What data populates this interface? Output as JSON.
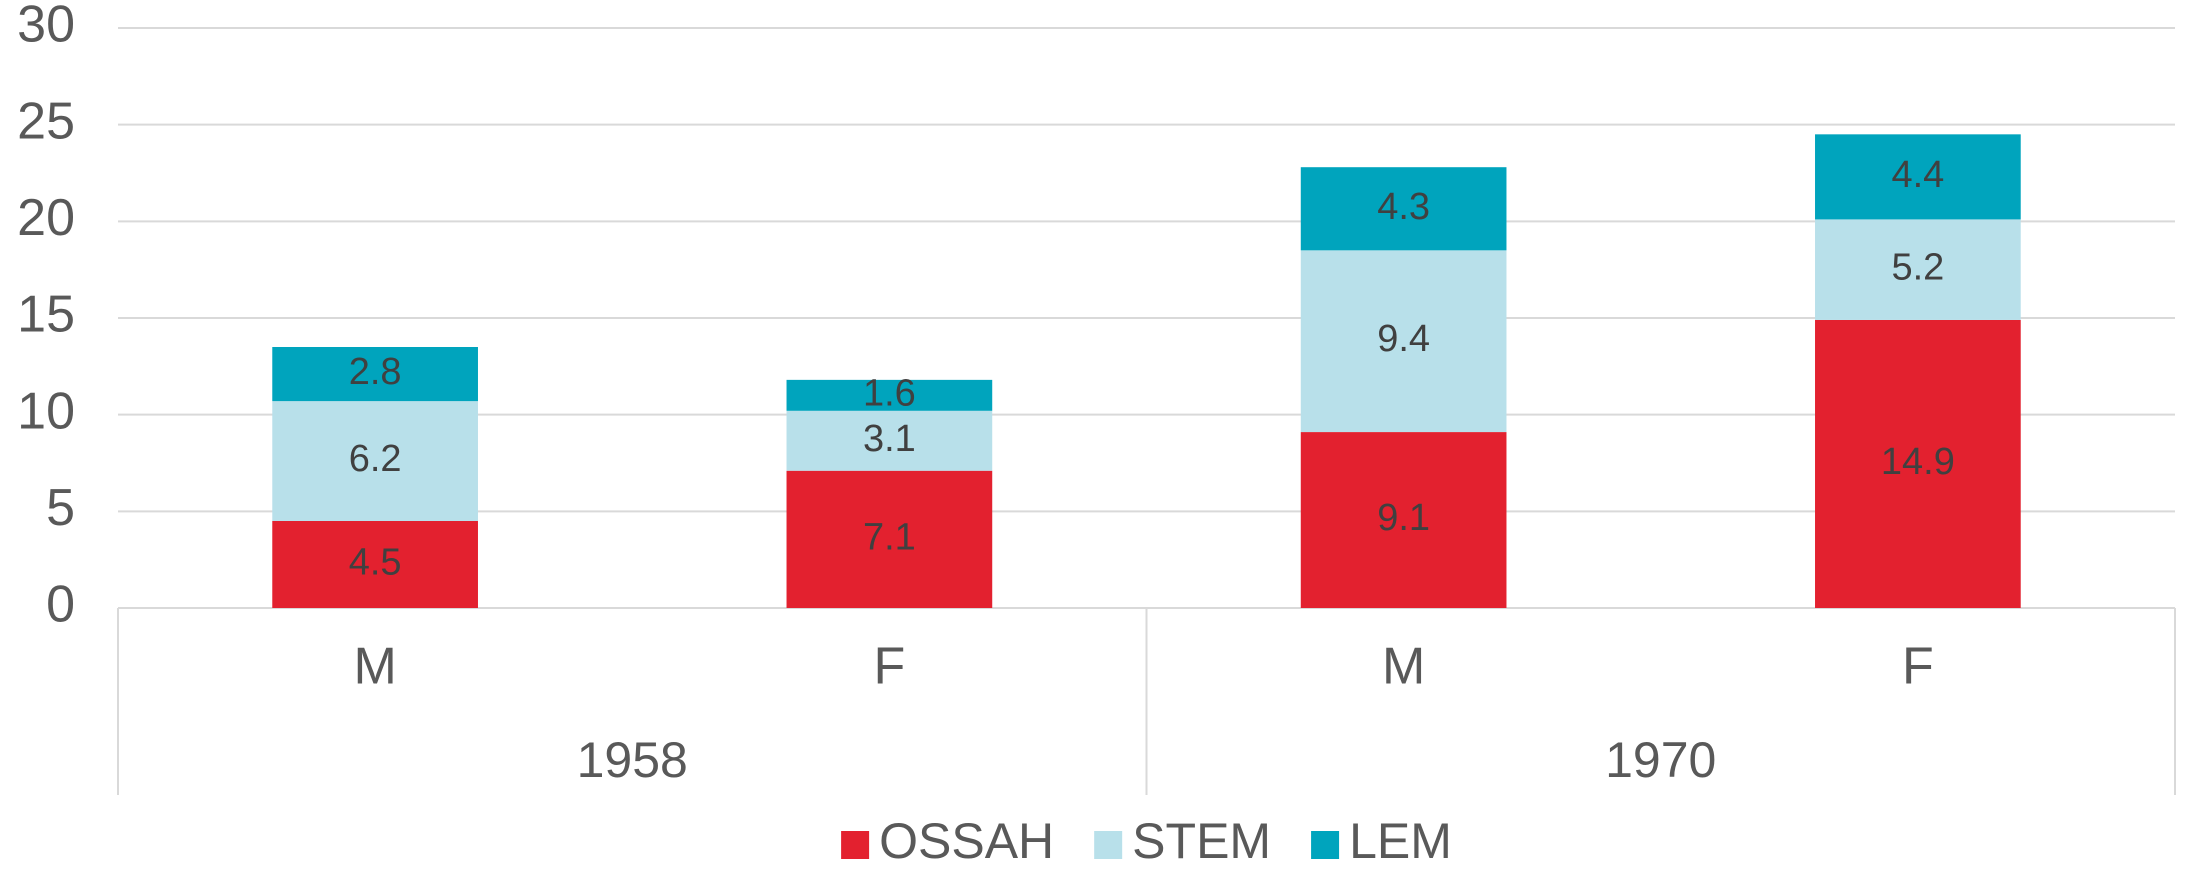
{
  "chart_data": {
    "type": "stacked_bar",
    "categories": [
      "M",
      "F",
      "M",
      "F"
    ],
    "groups": [
      "1958",
      "1970"
    ],
    "series": [
      {
        "name": "OSSAH",
        "color": "#e3212f",
        "values": [
          4.5,
          7.1,
          9.1,
          14.9
        ]
      },
      {
        "name": "STEM",
        "color": "#b8e0ea",
        "values": [
          6.2,
          3.1,
          9.4,
          5.2
        ]
      },
      {
        "name": "LEM",
        "color": "#00a4bd",
        "values": [
          2.8,
          1.6,
          4.3,
          4.4
        ]
      }
    ],
    "ylim": [
      0,
      30
    ],
    "yticks": [
      0,
      5,
      10,
      15,
      20,
      25,
      30
    ],
    "grid": true,
    "legend": "bottom"
  }
}
